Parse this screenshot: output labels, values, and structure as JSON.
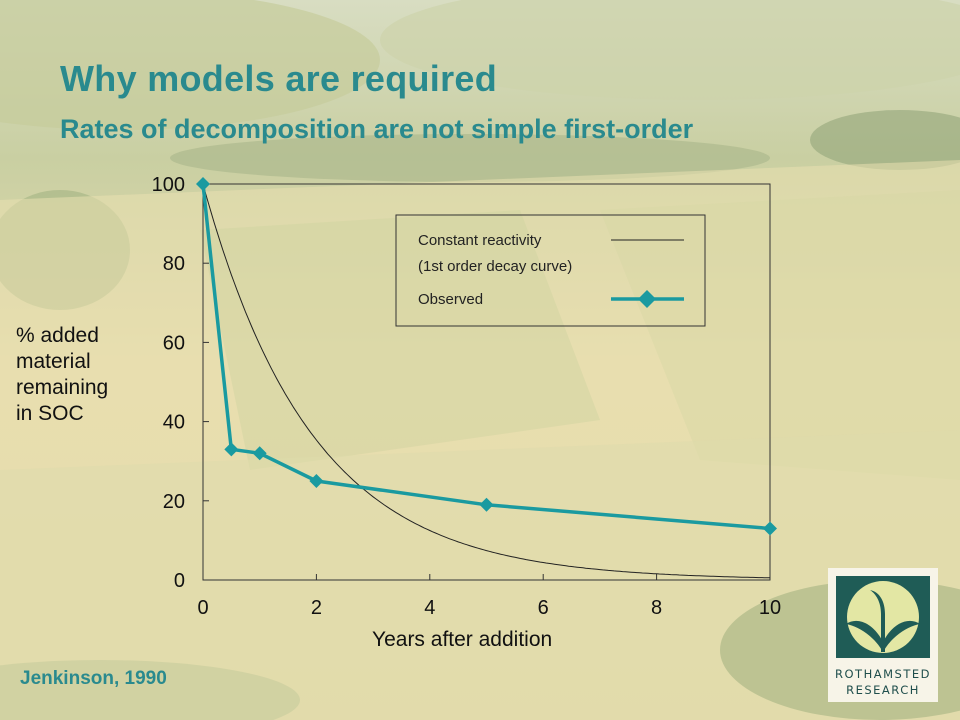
{
  "slide": {
    "title": "Why models are required",
    "subtitle": "Rates of decomposition are not simple first-order",
    "credit": "Jenkinson, 1990",
    "logo": {
      "line1": "ROTHAMSTED",
      "line2": "RESEARCH"
    },
    "colors": {
      "title": "#2a8a8e",
      "observed": "#1a9aa0",
      "curve": "#222222"
    }
  },
  "chart_data": {
    "type": "line",
    "xlabel": "Years after addition",
    "ylabel": [
      "% added",
      "material",
      "remaining",
      "in SOC"
    ],
    "xlim": [
      0,
      10
    ],
    "ylim": [
      0,
      100
    ],
    "xticks": [
      0,
      2,
      4,
      6,
      8,
      10
    ],
    "yticks": [
      0,
      20,
      40,
      60,
      80,
      100
    ],
    "grid": false,
    "legend_position": "top-right",
    "legend": {
      "constant_line1": "Constant reactivity",
      "constant_line2": "(1st order decay curve)",
      "observed": "Observed"
    },
    "series": [
      {
        "name": "Observed",
        "marker": "diamond",
        "x": [
          0,
          0.5,
          1,
          2,
          5,
          10
        ],
        "y": [
          100,
          33,
          32,
          25,
          19,
          13
        ]
      },
      {
        "name": "Constant reactivity (1st order decay curve)",
        "marker": "none",
        "decay_rate_per_year": 0.52,
        "start": 100
      }
    ]
  }
}
